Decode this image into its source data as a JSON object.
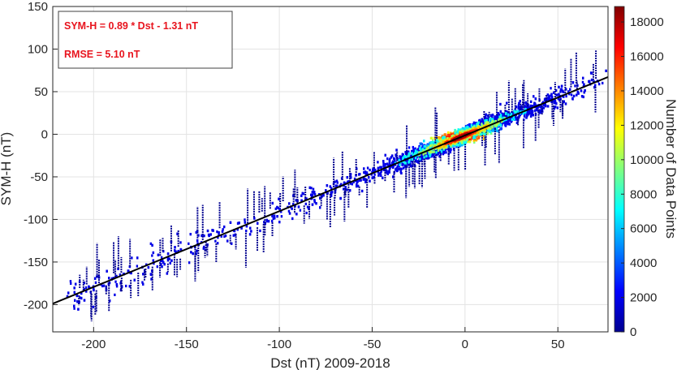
{
  "chart_data": {
    "type": "heatmap",
    "xlabel": "Dst (nT) 2009-2018",
    "ylabel": "SYM-H (nT)",
    "xlim": [
      -222,
      77
    ],
    "ylim": [
      -232,
      150
    ],
    "xticks": [
      -200,
      -150,
      -100,
      -50,
      0,
      50
    ],
    "yticks": [
      -200,
      -150,
      -100,
      -50,
      0,
      50,
      100,
      150
    ],
    "xtick_labels": [
      "-200",
      "-150",
      "-100",
      "-50",
      "0",
      "50"
    ],
    "ytick_labels": [
      "-200",
      "-150",
      "-100",
      "-50",
      "0",
      "50",
      "100",
      "150"
    ],
    "grid": true,
    "colorbar": {
      "label": "Number of Data Points",
      "range": [
        0,
        18900
      ],
      "ticks": [
        0,
        2000,
        4000,
        6000,
        8000,
        10000,
        12000,
        14000,
        16000,
        18000
      ],
      "tick_labels": [
        "0",
        "2000",
        "4000",
        "6000",
        "8000",
        "10000",
        "12000",
        "14000",
        "16000",
        "18000"
      ],
      "colormap": "jet"
    },
    "fit_line": {
      "slope": 0.89,
      "intercept": -1.31,
      "color": "#000000"
    },
    "annotations": [
      "SYM-H = 0.89 * Dst - 1.31 nT",
      "RMSE = 5.10 nT"
    ],
    "annotation_color": "#e8141e",
    "density_peak": {
      "x": -2,
      "y": -3
    }
  }
}
